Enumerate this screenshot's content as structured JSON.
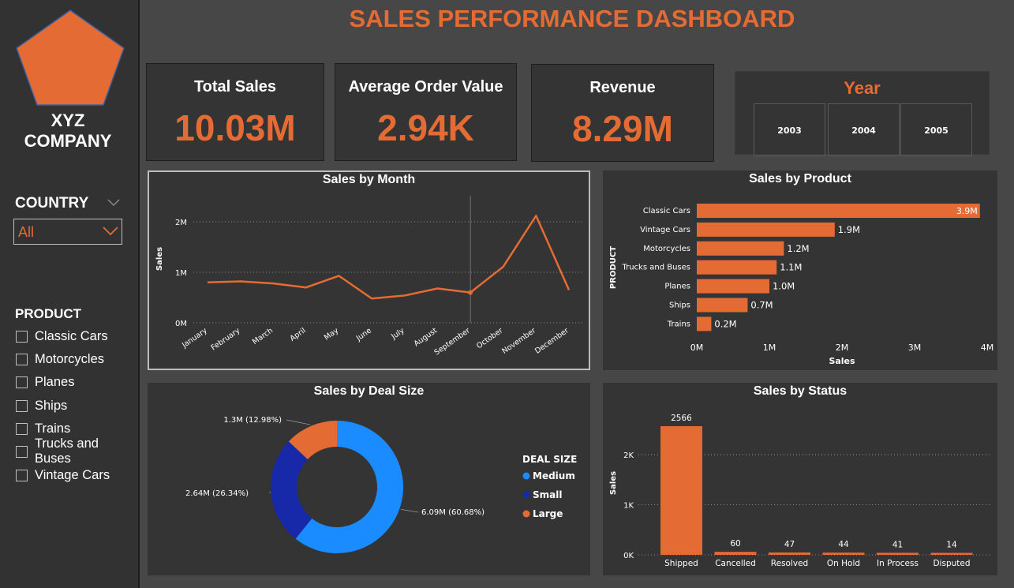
{
  "title": "SALES PERFORMANCE DASHBOARD",
  "colors": {
    "accent": "#e46c34",
    "medium": "#1a8cff",
    "small": "#1728a8",
    "panel": "#343434",
    "background": "#474747"
  },
  "sidebar": {
    "logo_icon": "pentagon-logo-icon",
    "company_line1": "XYZ",
    "company_line2": "COMPANY",
    "country_label": "COUNTRY",
    "country_value": "All",
    "product_label": "PRODUCT",
    "products": [
      "Classic Cars",
      "Motorcycles",
      "Planes",
      "Ships",
      "Trains",
      "Trucks and Buses",
      "Vintage Cars"
    ]
  },
  "kpis": [
    {
      "label": "Total Sales",
      "value": "10.03M"
    },
    {
      "label": "Average Order Value",
      "value": "2.94K"
    },
    {
      "label": "Revenue",
      "value": "8.29M"
    }
  ],
  "year_slicer": {
    "title": "Year",
    "options": [
      "2003",
      "2004",
      "2005"
    ]
  },
  "chart_data": [
    {
      "type": "line",
      "title": "Sales by Month",
      "ylabel": "Sales",
      "categories": [
        "January",
        "February",
        "March",
        "April",
        "May",
        "June",
        "July",
        "August",
        "September",
        "October",
        "November",
        "December"
      ],
      "values": [
        800000,
        820000,
        780000,
        700000,
        930000,
        480000,
        540000,
        680000,
        600000,
        1110000,
        2120000,
        650000
      ],
      "y_ticks": [
        "0M",
        "1M",
        "2M"
      ],
      "ylim": [
        0,
        2000000
      ]
    },
    {
      "type": "bar",
      "orientation": "horizontal",
      "title": "Sales by Product",
      "xlabel": "Sales",
      "ylabel": "PRODUCT",
      "categories": [
        "Classic Cars",
        "Vintage Cars",
        "Motorcycles",
        "Trucks and Buses",
        "Planes",
        "Ships",
        "Trains"
      ],
      "values": [
        3.9,
        1.9,
        1.2,
        1.1,
        1.0,
        0.7,
        0.2
      ],
      "labels": [
        "3.9M",
        "1.9M",
        "1.2M",
        "1.1M",
        "1.0M",
        "0.7M",
        "0.2M"
      ],
      "x_ticks": [
        "0M",
        "1M",
        "2M",
        "3M",
        "4M"
      ],
      "xlim": [
        0,
        4
      ]
    },
    {
      "type": "pie",
      "title": "Sales by Deal Size",
      "legend_title": "DEAL SIZE",
      "slices": [
        {
          "name": "Medium",
          "value": 6.09,
          "label": "6.09M (60.68%)"
        },
        {
          "name": "Small",
          "value": 2.64,
          "label": "2.64M (26.34%)"
        },
        {
          "name": "Large",
          "value": 1.3,
          "label": "1.3M (12.98%)"
        }
      ]
    },
    {
      "type": "bar",
      "title": "Sales by Status",
      "ylabel": "Sales",
      "categories": [
        "Shipped",
        "Cancelled",
        "Resolved",
        "On Hold",
        "In Process",
        "Disputed"
      ],
      "values": [
        2566,
        60,
        47,
        44,
        41,
        14
      ],
      "y_ticks": [
        "0K",
        "1K",
        "2K"
      ],
      "ylim": [
        0,
        2566
      ]
    }
  ]
}
